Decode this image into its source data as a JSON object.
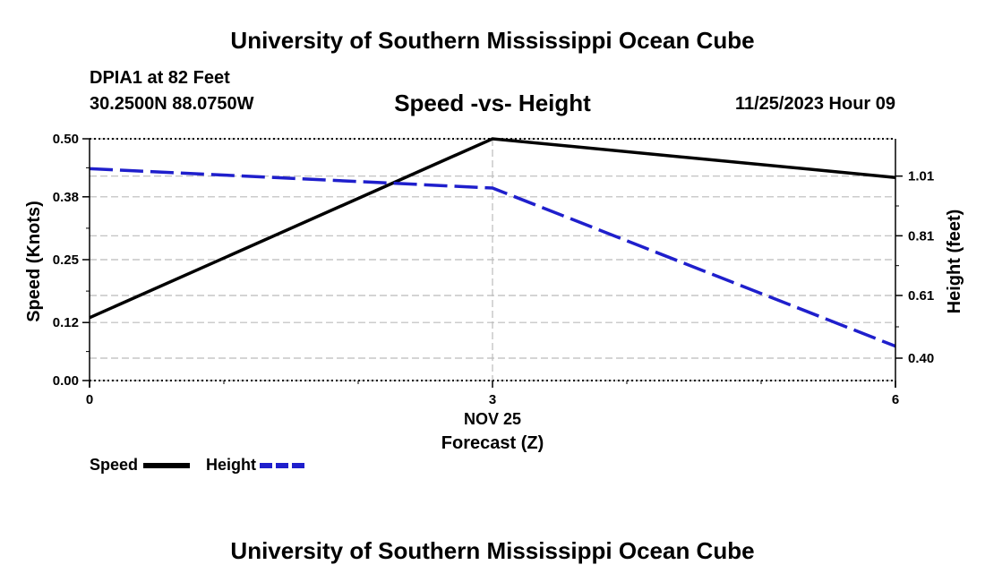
{
  "header": {
    "title": "University of Southern Mississippi Ocean Cube",
    "station": "DPIA1 at 82 Feet",
    "coords": "30.2500N  88.0750W",
    "subtitle": "Speed -vs- Height",
    "datetime": "11/25/2023 Hour 09"
  },
  "footer": {
    "title": "University of Southern Mississippi Ocean Cube"
  },
  "legend": {
    "speed_label": "Speed",
    "height_label": "Height"
  },
  "colors": {
    "speed": "#000000",
    "height": "#1f1fcc",
    "grid": "#bbbbbb"
  },
  "chart_data": {
    "type": "line",
    "title": "Speed -vs- Height",
    "xlabel": "Forecast (Z)",
    "x_date_label": "NOV 25",
    "ylabel_left": "Speed (Knots)",
    "ylabel_right": "Height (feet)",
    "xlim": [
      0,
      6
    ],
    "x_ticks": [
      "0",
      "3",
      "6"
    ],
    "y_left_lim": [
      0,
      0.5
    ],
    "y_left_ticks": [
      "0.00",
      "0.12",
      "0.25",
      "0.38",
      "0.50"
    ],
    "y_right_lim": [
      0.325,
      1.135
    ],
    "y_right_ticks": [
      "0.40",
      "0.61",
      "0.81",
      "1.01"
    ],
    "series": [
      {
        "name": "Speed",
        "axis": "left",
        "x": [
          0,
          3,
          6
        ],
        "values": [
          0.13,
          0.5,
          0.42
        ]
      },
      {
        "name": "Height",
        "axis": "right",
        "x": [
          0,
          3,
          6
        ],
        "values": [
          1.035,
          0.97,
          0.44
        ]
      }
    ]
  }
}
